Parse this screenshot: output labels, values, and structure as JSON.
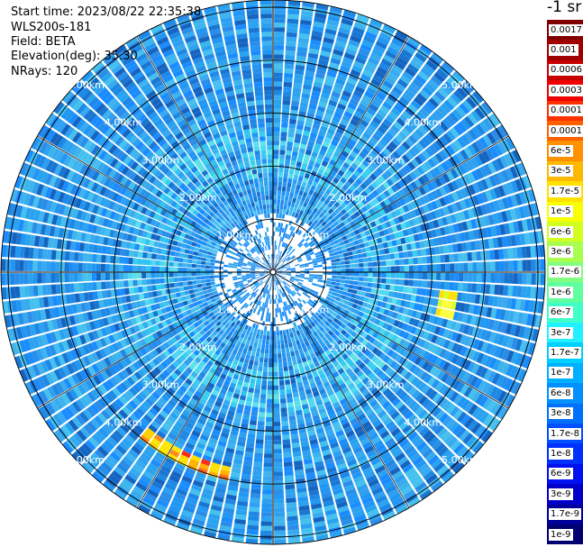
{
  "header": {
    "start_time": "Start time: 2023/08/22 22:35:38",
    "instrument": "WLS200s-181",
    "field": "Field: BETA",
    "elevation": "Elevation(deg): 35.30",
    "nrays": "NRays: 120"
  },
  "units_label": "-1 sr",
  "range_ring_labels": [
    "1.00km",
    "2.00km",
    "3.00km",
    "4.00km",
    "5.00km"
  ],
  "colorbar": {
    "labels": [
      "0.0017",
      "0.001",
      "0.0006",
      "0.0003",
      "0.00017",
      "0.0001",
      "6e-5",
      "3e-5",
      "1.7e-5",
      "1e-5",
      "6e-6",
      "3e-6",
      "1.7e-6",
      "1e-6",
      "6e-7",
      "3e-7",
      "1.7e-7",
      "1e-7",
      "6e-8",
      "3e-8",
      "1.7e-8",
      "1e-8",
      "6e-9",
      "3e-9",
      "1.7e-9",
      "1e-9"
    ],
    "colors": [
      "#800000",
      "#a00000",
      "#c80000",
      "#f00000",
      "#ff3000",
      "#ff6000",
      "#ff9000",
      "#ffb800",
      "#ffe000",
      "#f8ff00",
      "#d0ff20",
      "#a8ff50",
      "#80ff80",
      "#60ffa0",
      "#40ffc8",
      "#20f0ff",
      "#00d0ff",
      "#00b0ff",
      "#0090ff",
      "#0070ff",
      "#0050ff",
      "#0030ff",
      "#0010f0",
      "#0000c8",
      "#00009a",
      "#000070"
    ]
  }
}
